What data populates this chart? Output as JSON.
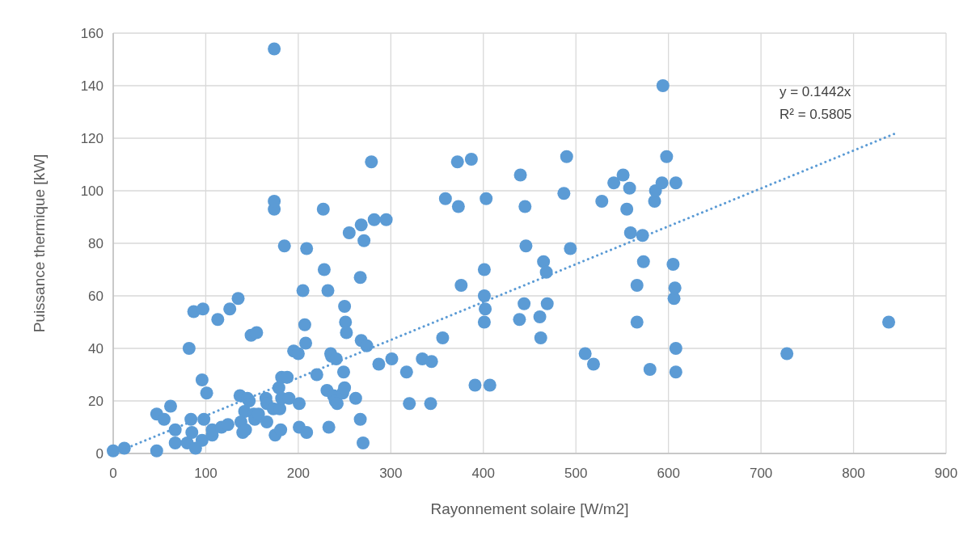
{
  "chart_data": {
    "type": "scatter",
    "xlabel": "Rayonnement solaire [W/m2]",
    "ylabel": "Puissance thermique [kW]",
    "xlim": [
      0,
      900
    ],
    "xticks": [
      0,
      100,
      200,
      300,
      400,
      500,
      600,
      700,
      800,
      900
    ],
    "ylim": [
      0,
      160
    ],
    "yticks": [
      0,
      20,
      40,
      60,
      80,
      100,
      120,
      140,
      160
    ],
    "grid": true,
    "annotations": [
      "y = 0.1442x",
      "R² = 0.5805"
    ],
    "series": [
      {
        "color": "#5b9bd5",
        "marker": "circle",
        "x": [
          0,
          12,
          47,
          47,
          55,
          62,
          67,
          67,
          80,
          82,
          84,
          85,
          87,
          89,
          97,
          96,
          96,
          98,
          101,
          107,
          107,
          113,
          117,
          124,
          126,
          135,
          137,
          138,
          140,
          142,
          143,
          145,
          147,
          149,
          152,
          153,
          155,
          157,
          165,
          166,
          166,
          173,
          174,
          174,
          174,
          175,
          179,
          180,
          181,
          182,
          182,
          185,
          188,
          190,
          195,
          200,
          201,
          201,
          205,
          207,
          208,
          209,
          209,
          220,
          227,
          228,
          231,
          232,
          233,
          235,
          236,
          238,
          240,
          241,
          242,
          248,
          249,
          250,
          250,
          251,
          252,
          255,
          262,
          267,
          267,
          268,
          268,
          270,
          271,
          274,
          279,
          282,
          287,
          295,
          301,
          317,
          320,
          334,
          343,
          344,
          356,
          359,
          372,
          373,
          376,
          387,
          391,
          401,
          401,
          402,
          401,
          403,
          407,
          439,
          440,
          444,
          445,
          446,
          461,
          462,
          465,
          468,
          469,
          487,
          490,
          494,
          510,
          519,
          528,
          541,
          551,
          555,
          558,
          559,
          566,
          566,
          572,
          573,
          580,
          585,
          586,
          593,
          594,
          598,
          605,
          606,
          607,
          608,
          608,
          608,
          728,
          838
        ],
        "values": [
          1,
          2,
          15,
          1,
          13,
          18,
          9,
          4,
          4,
          40,
          13,
          8,
          54,
          2,
          55,
          28,
          5,
          13,
          23,
          7,
          9,
          51,
          10,
          11,
          55,
          59,
          22,
          12,
          8,
          16,
          9,
          21,
          20,
          45,
          15,
          13,
          46,
          15,
          21,
          19,
          12,
          17,
          93,
          96,
          154,
          7,
          25,
          17,
          9,
          29,
          21,
          79,
          29,
          21,
          39,
          38,
          19,
          10,
          62,
          49,
          42,
          8,
          78,
          30,
          93,
          70,
          24,
          62,
          10,
          38,
          37,
          22,
          20,
          36,
          19,
          23,
          31,
          56,
          25,
          50,
          46,
          84,
          21,
          13,
          67,
          87,
          43,
          4,
          81,
          41,
          111,
          89,
          34,
          89,
          36,
          31,
          19,
          36,
          19,
          35,
          44,
          97,
          111,
          94,
          64,
          112,
          26,
          70,
          60,
          55,
          50,
          97,
          26,
          51,
          106,
          57,
          94,
          79,
          52,
          44,
          73,
          69,
          57,
          99,
          113,
          78,
          38,
          34,
          96,
          103,
          106,
          93,
          101,
          84,
          64,
          50,
          83,
          73,
          32,
          96,
          100,
          103,
          140,
          113,
          72,
          59,
          63,
          103,
          40,
          31,
          38,
          50
        ]
      },
      {
        "type": "line",
        "color": "#5b9bd5",
        "line_style": "dotted",
        "marker": "none",
        "x": [
          10,
          845
        ],
        "values": [
          1.4,
          121.8
        ]
      }
    ]
  }
}
